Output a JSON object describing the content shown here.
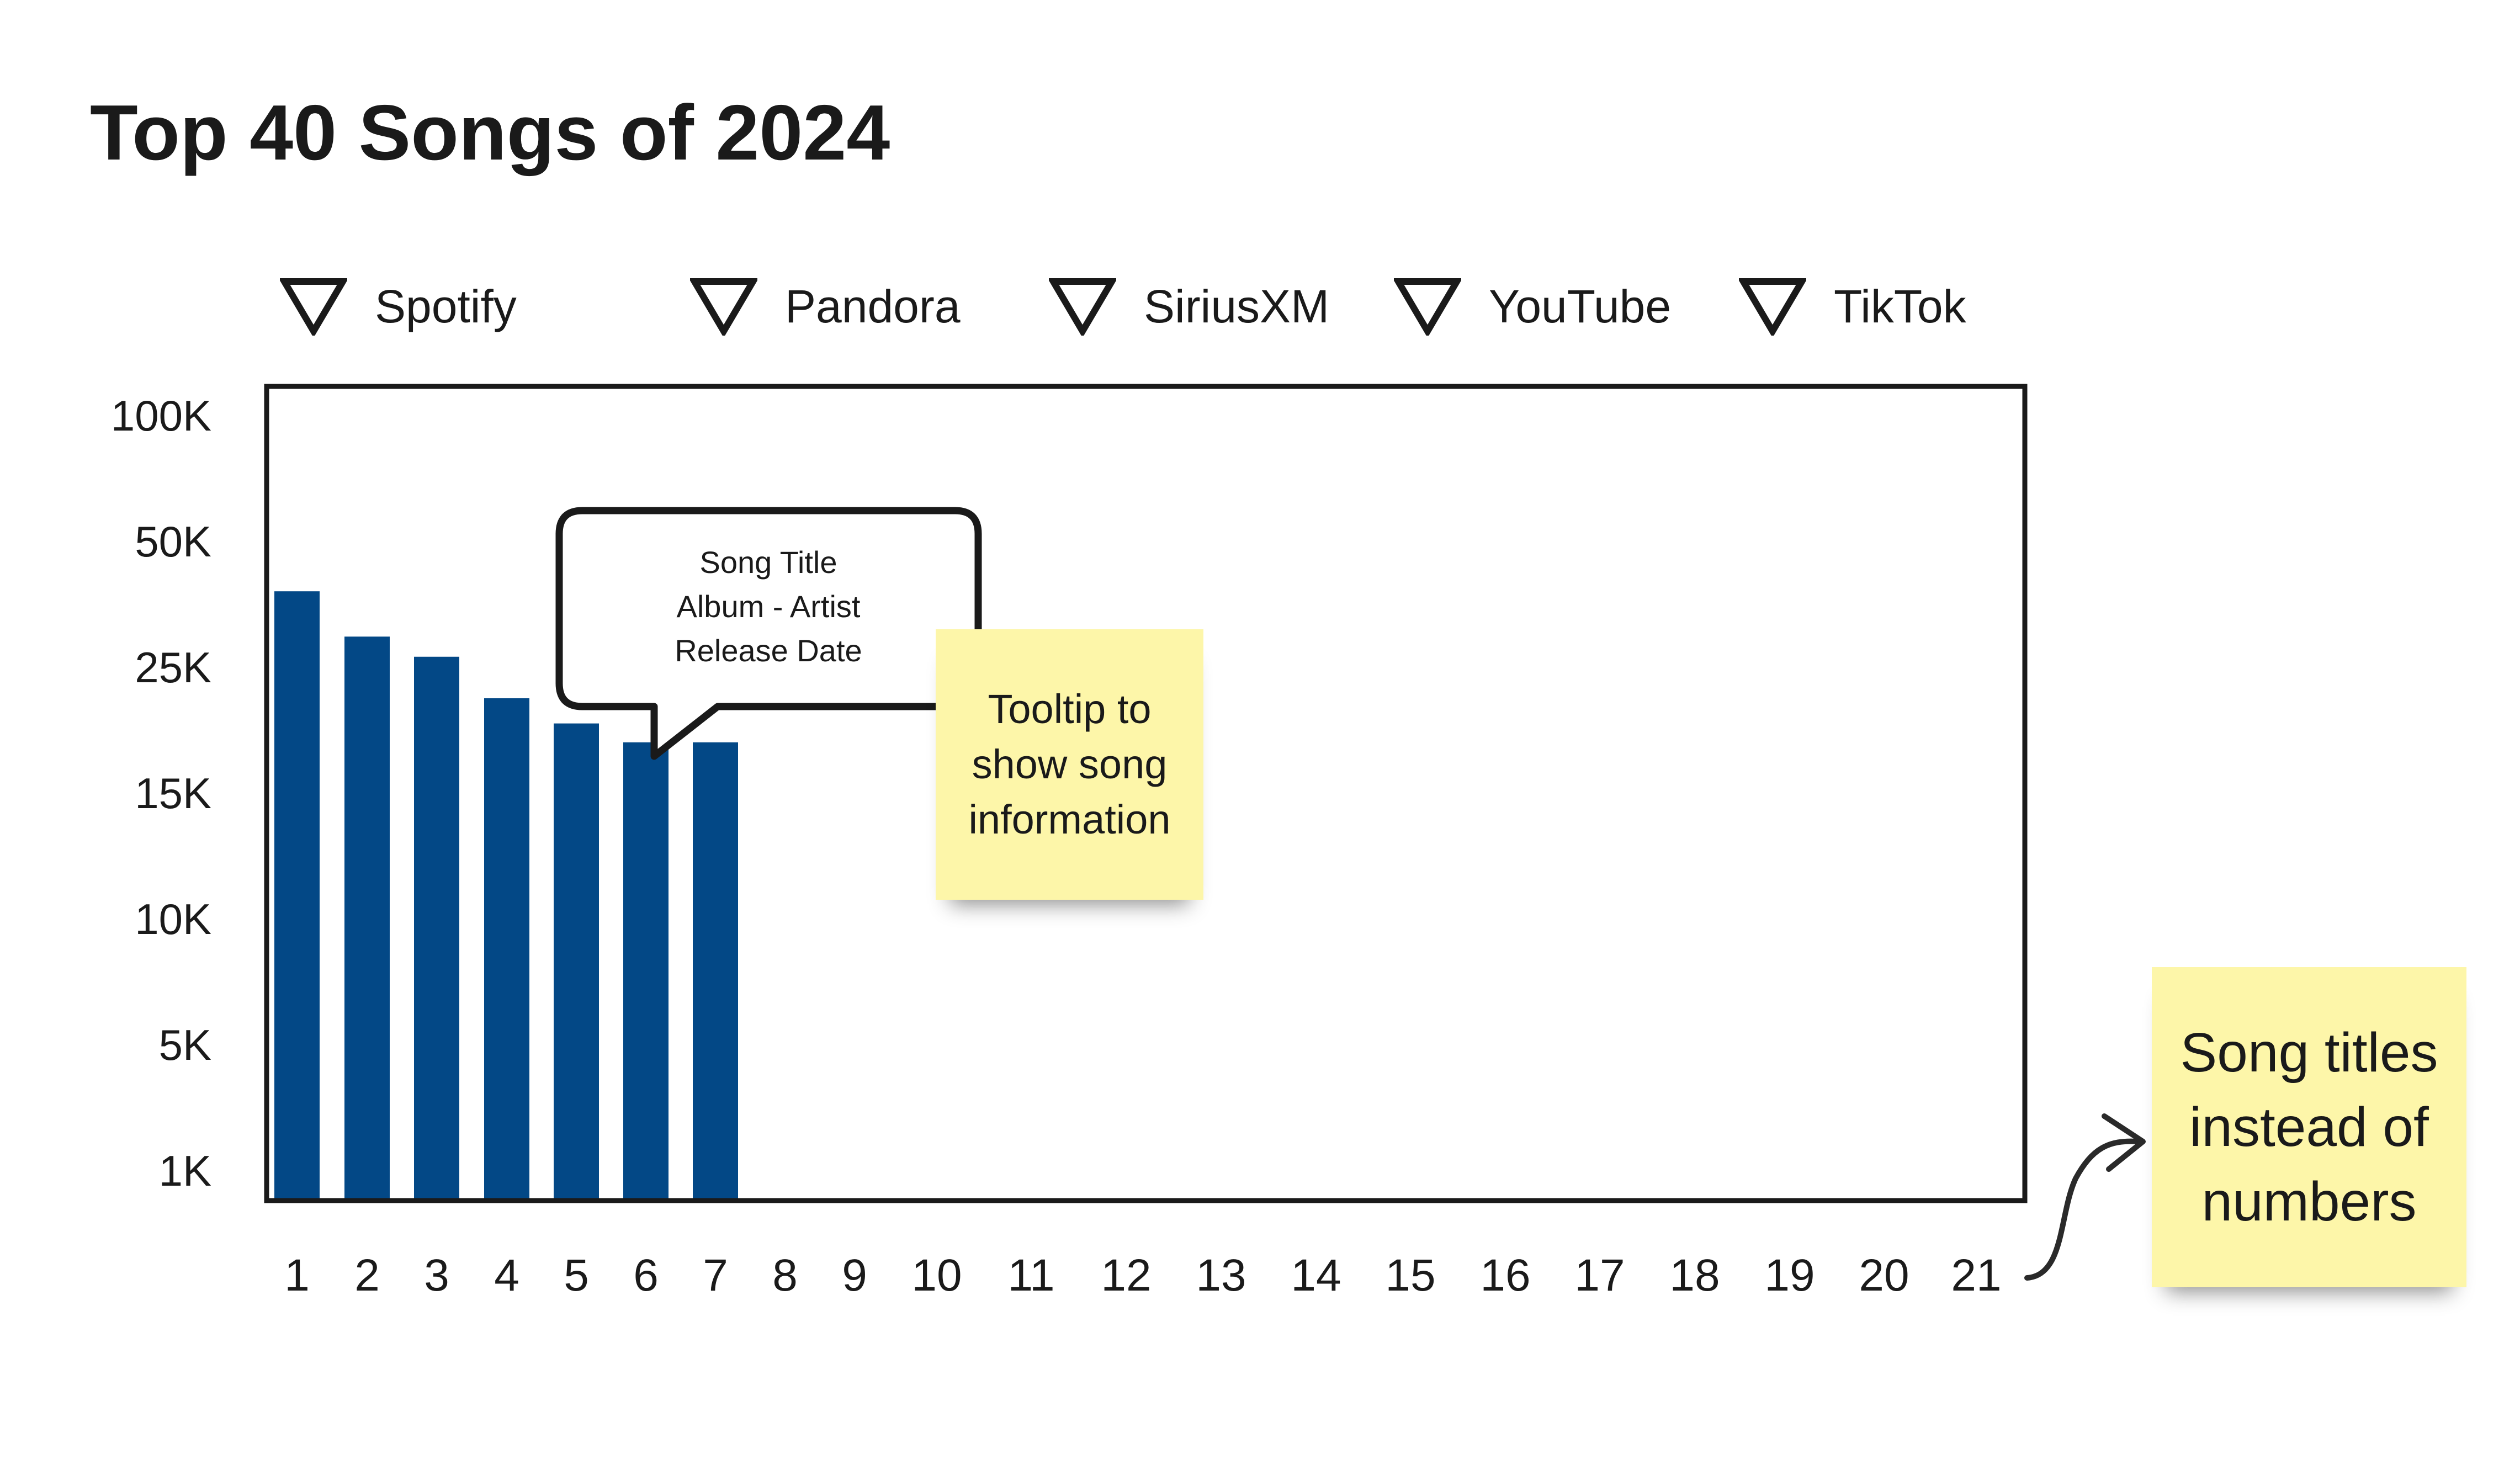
{
  "page": {
    "title": "Top 40 Songs of 2024"
  },
  "filters": [
    {
      "label": "Spotify"
    },
    {
      "label": "Pandora"
    },
    {
      "label": "SiriusXM"
    },
    {
      "label": "YouTube"
    },
    {
      "label": "TikTok"
    }
  ],
  "tooltip": {
    "lines": [
      "Song Title",
      "Album - Artist",
      "Release Date"
    ]
  },
  "notes": {
    "tooltip_note": "Tooltip to\nshow song\ninformation",
    "titles_note": "Song titles\ninstead of\nnumbers"
  },
  "colors": {
    "bar": "#034886",
    "sticky": "#fdf6a9",
    "frame": "#1a1a1a"
  },
  "chart_data": {
    "type": "bar",
    "title": "Top 40 Songs of 2024",
    "xlabel": "",
    "ylabel": "",
    "y_scale": "ordinal-ticks",
    "y_ticks": [
      "100K",
      "50K",
      "25K",
      "15K",
      "10K",
      "5K",
      "1K"
    ],
    "y_tick_values": [
      100000,
      50000,
      25000,
      15000,
      10000,
      5000,
      1000
    ],
    "ylim": [
      1000,
      100000
    ],
    "categories": [
      "1",
      "2",
      "3",
      "4",
      "5",
      "6",
      "7",
      "8",
      "9",
      "10",
      "11",
      "12",
      "13",
      "14",
      "15",
      "16",
      "17",
      "18",
      "19",
      "20",
      "21"
    ],
    "values": [
      40000,
      31000,
      27000,
      22500,
      20500,
      19000,
      19000,
      null,
      null,
      null,
      null,
      null,
      null,
      null,
      null,
      null,
      null,
      null,
      null,
      null,
      null
    ],
    "grid": false,
    "legend": "none"
  }
}
